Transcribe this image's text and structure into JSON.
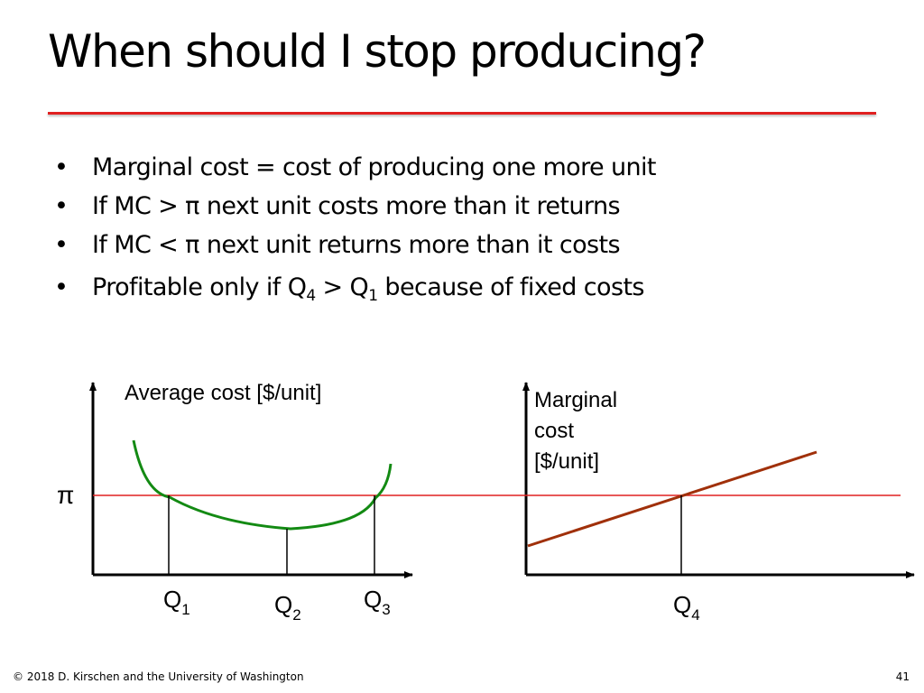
{
  "slide": {
    "title": "When should I stop producing?",
    "bullets": [
      {
        "text": "Marginal cost = cost of producing one more unit"
      },
      {
        "text": "If MC > π next unit costs more than it returns"
      },
      {
        "text": "If MC < π next unit returns more than it costs"
      },
      {
        "pre": "Profitable only if Q",
        "sub1": "4",
        "mid": " > Q",
        "sub2": "1",
        "post": " because of fixed costs"
      }
    ],
    "footer_left": "© 2018 D. Kirschen and the University of Washington",
    "page_number": "41"
  },
  "diagram": {
    "price_label": "π",
    "left_axis_label": "Average cost [$/unit]",
    "right_axis_label_lines": [
      "Marginal",
      "cost",
      "[$/unit]"
    ],
    "q_labels": [
      {
        "base": "Q",
        "sub": "1"
      },
      {
        "base": "Q",
        "sub": "2"
      },
      {
        "base": "Q",
        "sub": "3"
      },
      {
        "base": "Q",
        "sub": "4"
      }
    ],
    "colors": {
      "price_line": "#e02020",
      "average_cost_curve": "#138a13",
      "marginal_cost_line": "#a0300a",
      "rule": "#e02020"
    }
  }
}
